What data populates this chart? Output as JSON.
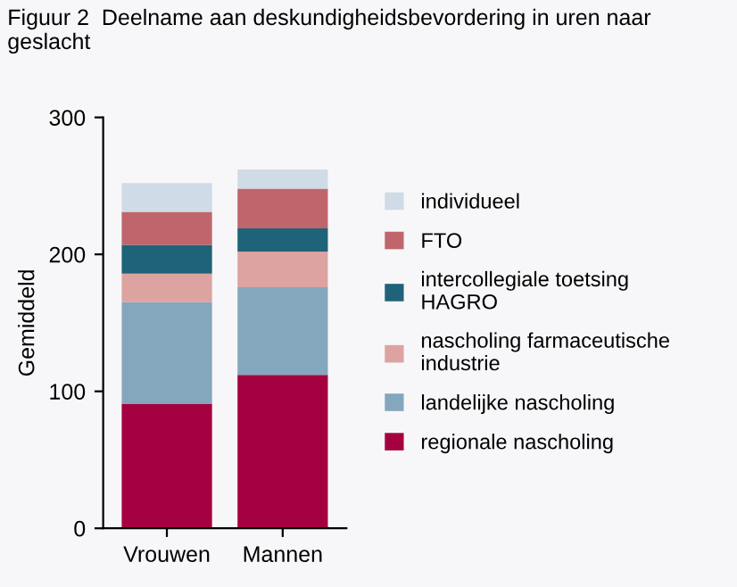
{
  "chart_data": {
    "type": "bar",
    "stacked": true,
    "title": "Figuur 2  Deelname aan deskundigheidsbevordering in uren naar geslacht",
    "ylabel": "Gemiddeld",
    "categories": [
      "Vrouwen",
      "Mannen"
    ],
    "series": [
      {
        "name": "regionale nascholing",
        "color": "#a50040",
        "values": [
          91,
          112
        ]
      },
      {
        "name": "landelijke nascholing",
        "color": "#85a7bd",
        "values": [
          74,
          64
        ]
      },
      {
        "name": "nascholing farmaceutische\nindustrie",
        "color": "#dda3a1",
        "values": [
          21,
          26
        ]
      },
      {
        "name": "intercollegiale toetsing\nHAGRO",
        "color": "#1f6378",
        "values": [
          21,
          17
        ]
      },
      {
        "name": "FTO",
        "color": "#c0656c",
        "values": [
          24,
          29
        ]
      },
      {
        "name": "individueel",
        "color": "#cfdbe6",
        "values": [
          21,
          14
        ]
      }
    ],
    "ylim": [
      0,
      300
    ],
    "yticks": [
      0,
      100,
      200,
      300
    ],
    "grid": false,
    "legend": "right"
  }
}
